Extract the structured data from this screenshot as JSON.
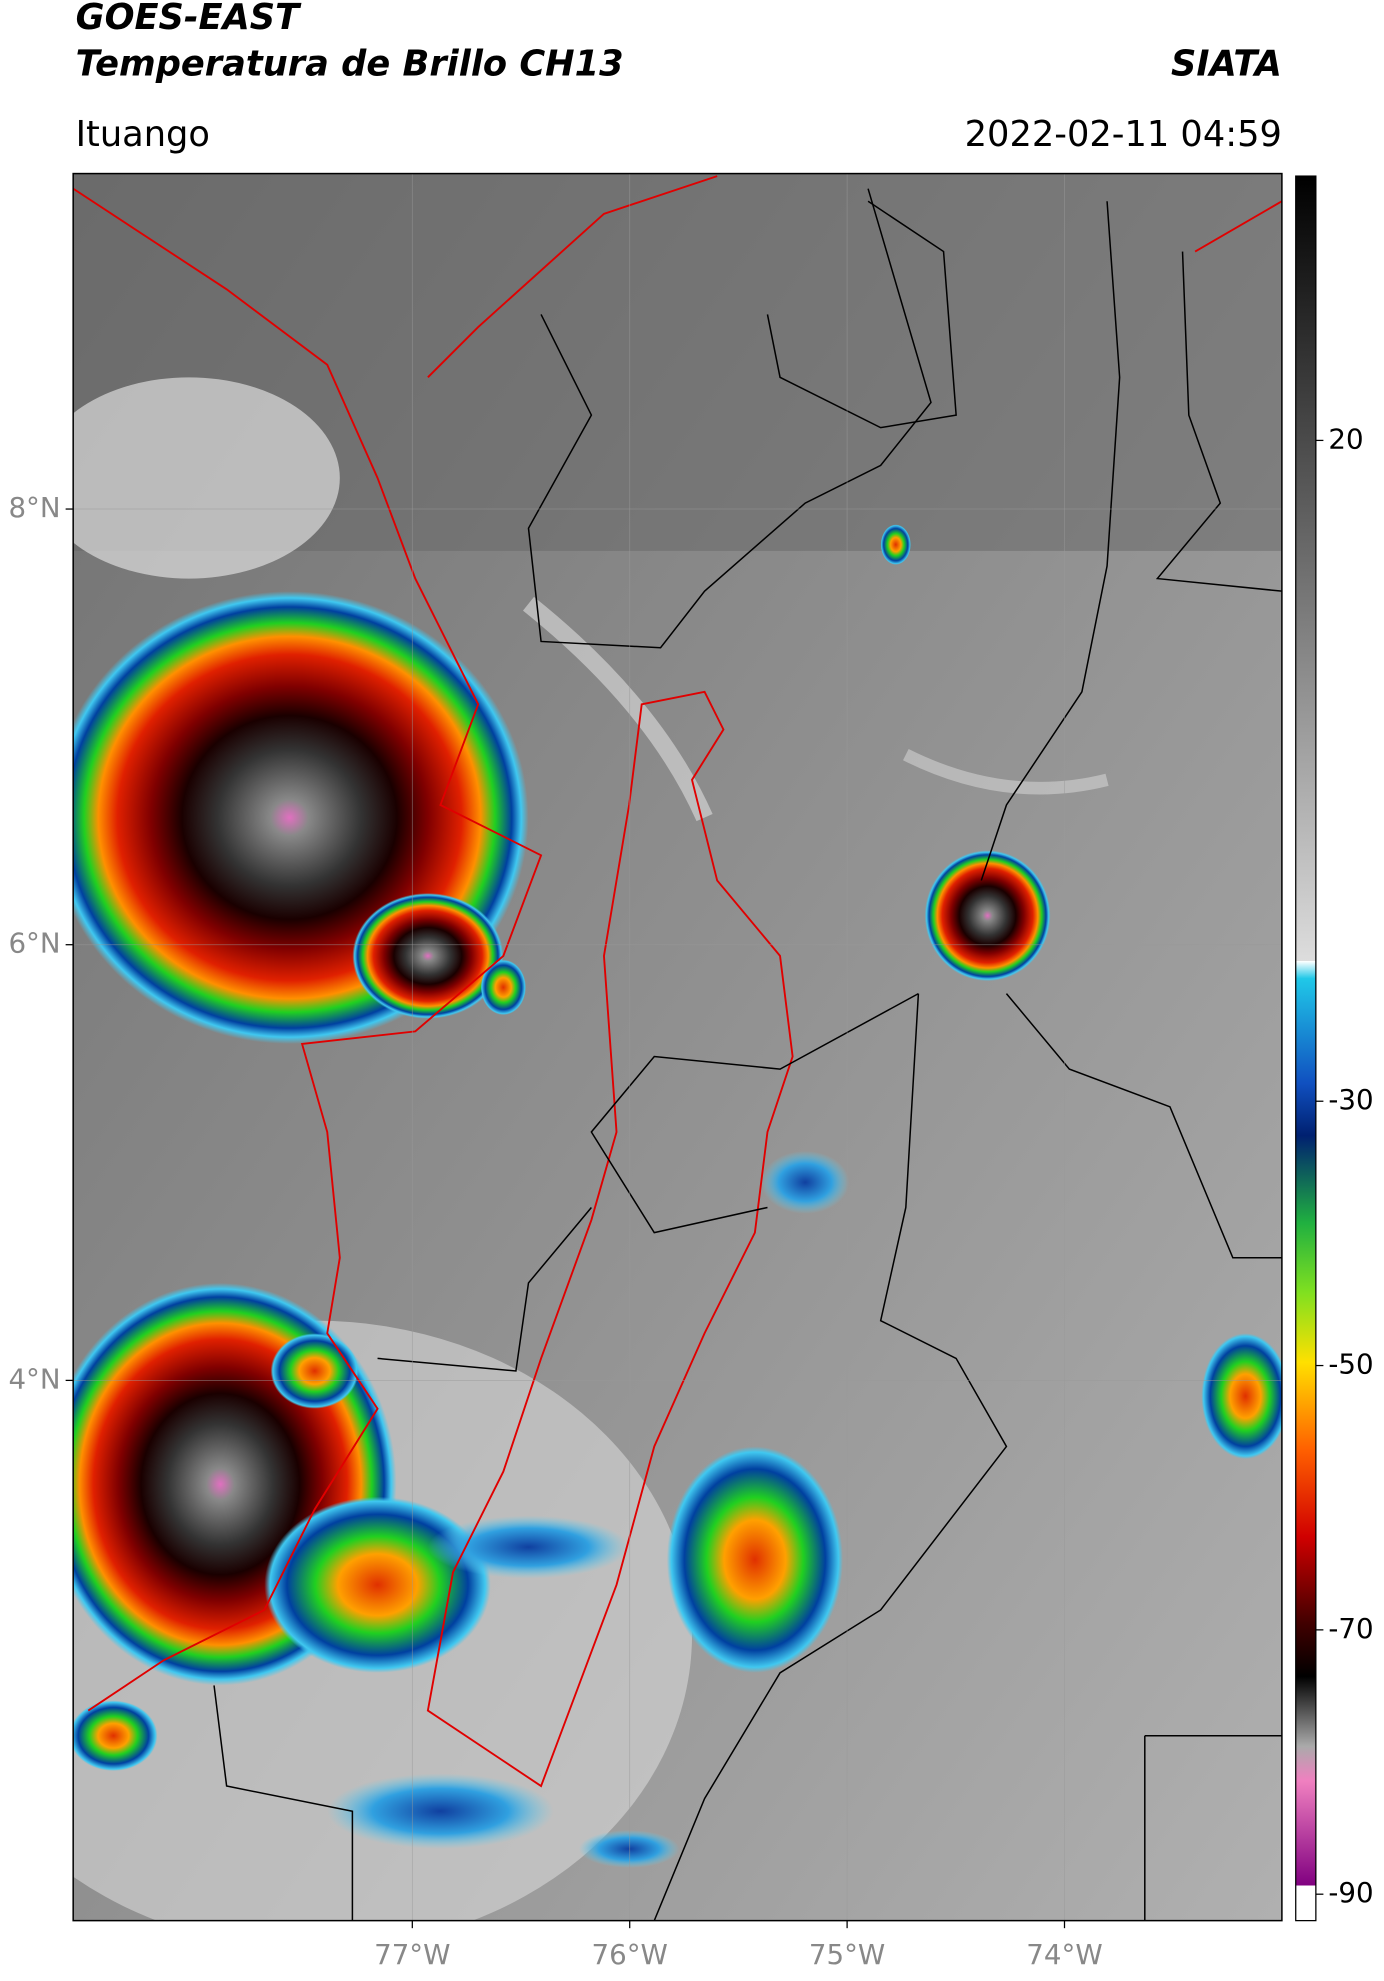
{
  "header": {
    "satellite": "GOES-EAST",
    "product": "Temperatura de Brillo CH13",
    "agency": "SIATA",
    "location": "Ituango",
    "datetime": "2022-02-11 04:59"
  },
  "map": {
    "lon_range": [
      -78.56,
      -73.0
    ],
    "lat_range": [
      1.52,
      9.54
    ],
    "lon_ticks": [
      {
        "value": -77,
        "label": "77°W"
      },
      {
        "value": -76,
        "label": "76°W"
      },
      {
        "value": -75,
        "label": "75°W"
      },
      {
        "value": -74,
        "label": "74°W"
      }
    ],
    "lat_ticks": [
      {
        "value": 8,
        "label": "8°N"
      },
      {
        "value": 6,
        "label": "6°N"
      },
      {
        "value": 4,
        "label": "4°N"
      }
    ]
  },
  "colorbar": {
    "range": [
      -92,
      40
    ],
    "ticks": [
      20,
      -30,
      -50,
      -70,
      -90
    ]
  }
}
